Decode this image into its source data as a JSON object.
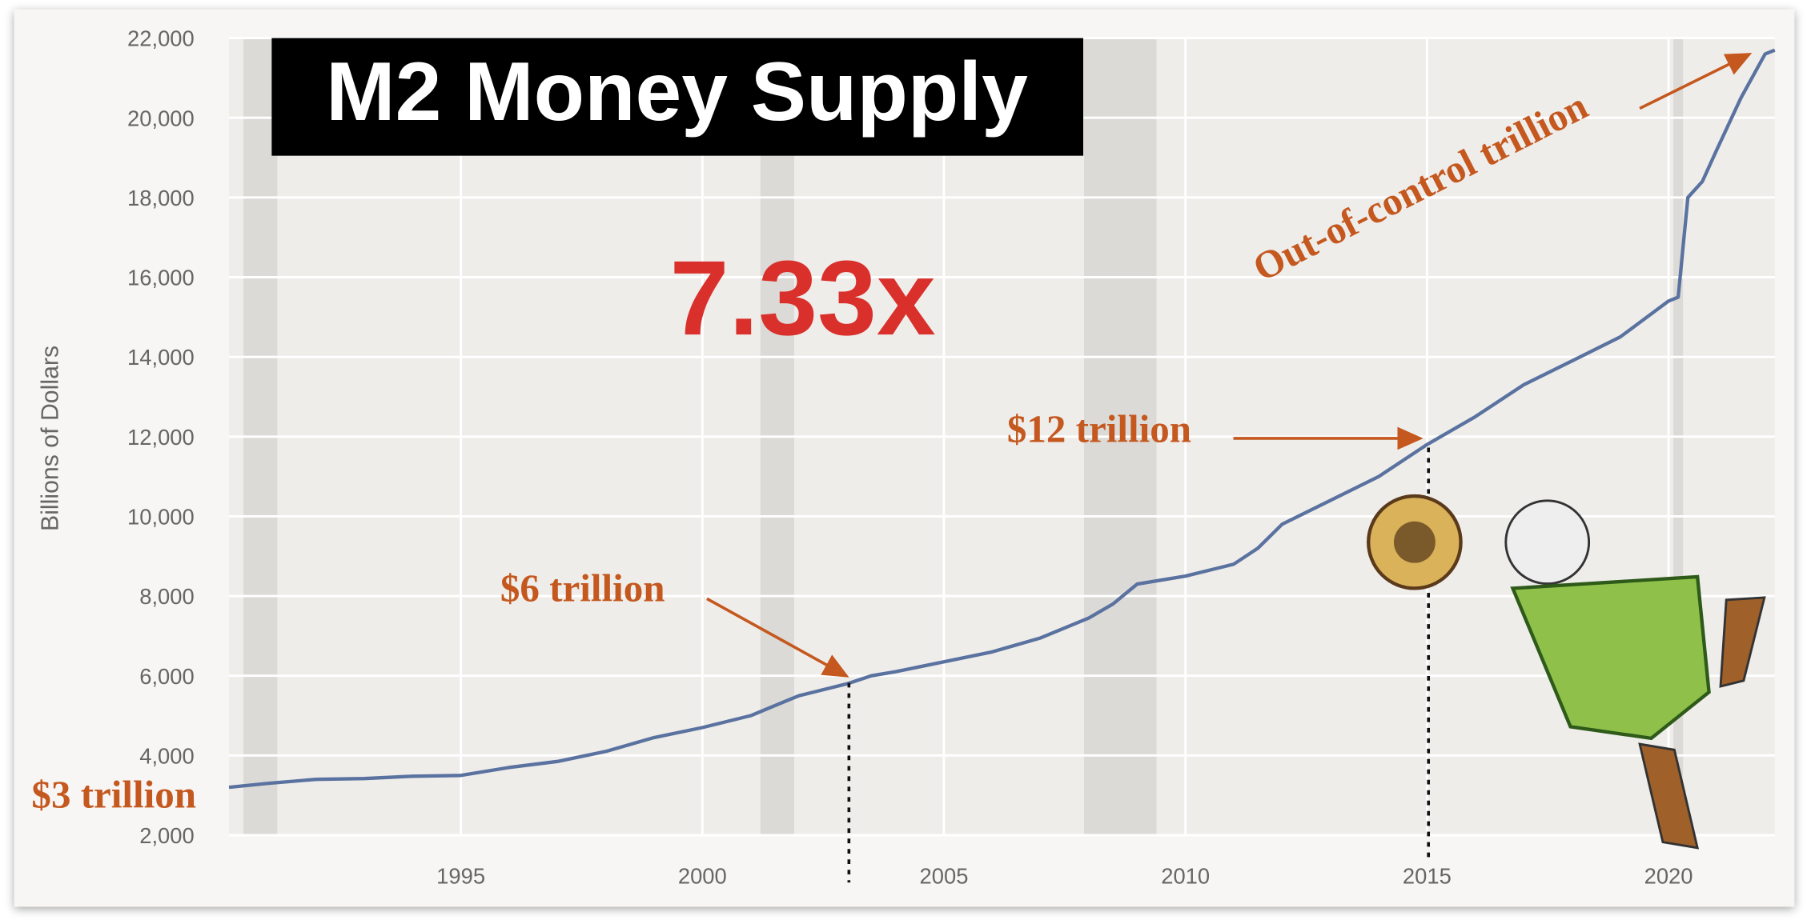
{
  "chart_data": {
    "type": "line",
    "title": "M2 Money Supply",
    "y_label": "Billions of Dollars",
    "headline": "7.33x",
    "annotations": [
      "$3 trillion",
      "$6 trillion",
      "$12 trillion",
      "Out-of-control trillion"
    ],
    "x": [
      1990.2,
      1991,
      1992,
      1993,
      1994,
      1995,
      1996,
      1997,
      1998,
      1999,
      2000,
      2001,
      2001.8,
      2002,
      2003,
      2003.5,
      2004,
      2005,
      2006,
      2007,
      2008,
      2008.5,
      2009,
      2010,
      2011,
      2011.5,
      2012,
      2013,
      2014,
      2015,
      2016,
      2017,
      2018,
      2019,
      2020,
      2020.2,
      2020.4,
      2020.7,
      2021,
      2021.5,
      2022,
      2022.2
    ],
    "series": [
      {
        "color": "#5a72a0",
        "values": [
          3200,
          3300,
          3400,
          3420,
          3480,
          3500,
          3700,
          3850,
          4100,
          4450,
          4700,
          5000,
          5400,
          5500,
          5800,
          6000,
          6100,
          6350,
          6600,
          6950,
          7450,
          7800,
          8300,
          8500,
          8800,
          9200,
          9800,
          10400,
          11000,
          11800,
          12500,
          13300,
          13900,
          14500,
          15400,
          15500,
          18000,
          18400,
          19200,
          20500,
          21600,
          21700
        ]
      }
    ],
    "shaded_periods": [
      [
        1990.5,
        1991.2
      ],
      [
        2001.2,
        2001.9
      ],
      [
        2007.9,
        2009.4
      ],
      [
        2020.1,
        2020.3
      ]
    ],
    "xlim": [
      1990.2,
      2022.2
    ],
    "ylim": [
      2000,
      22000
    ],
    "xticks": [
      1995,
      2000,
      2005,
      2010,
      2015,
      2020
    ],
    "yticks": [
      {
        "value": 2000,
        "label": "2,000"
      },
      {
        "value": 4000,
        "label": "4,000"
      },
      {
        "value": 6000,
        "label": "6,000"
      },
      {
        "value": 8000,
        "label": "8,000"
      },
      {
        "value": 10000,
        "label": "10,000"
      },
      {
        "value": 12000,
        "label": "12,000"
      },
      {
        "value": 14000,
        "label": "14,000"
      },
      {
        "value": 16000,
        "label": "16,000"
      },
      {
        "value": 18000,
        "label": "18,000"
      },
      {
        "value": 20000,
        "label": "20,000"
      },
      {
        "value": 22000,
        "label": "22,000"
      }
    ],
    "grid": true
  }
}
